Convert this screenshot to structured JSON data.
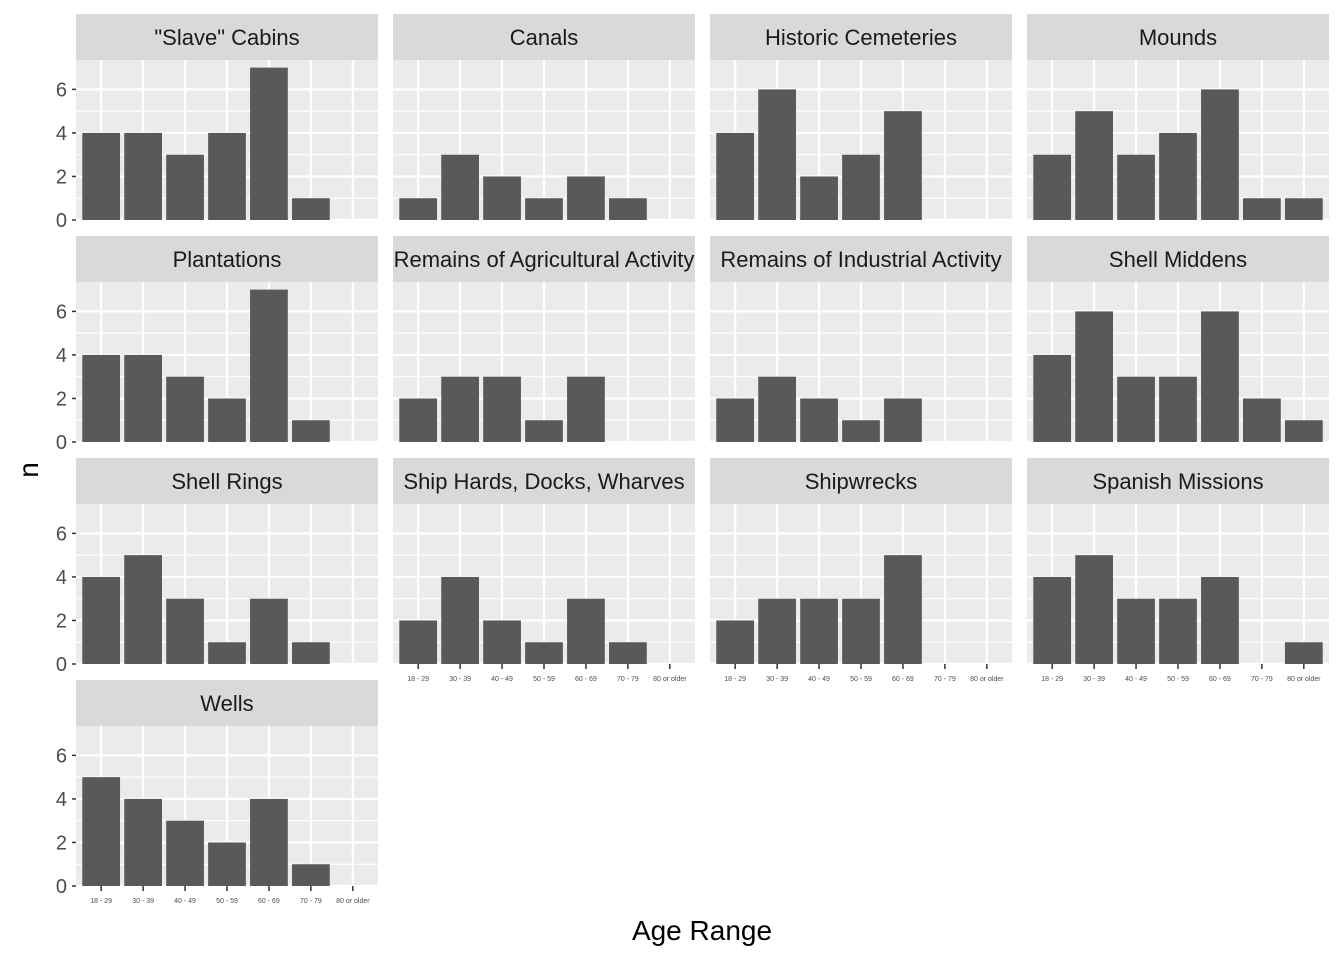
{
  "chart_data": {
    "type": "bar",
    "facet_columns": 4,
    "xlabel": "Age Range",
    "ylabel": "n",
    "ylim": [
      0,
      7.35
    ],
    "y_ticks": [
      0,
      2,
      4,
      6
    ],
    "categories": [
      "18 - 29",
      "30 - 39",
      "40 - 49",
      "50 - 59",
      "60 - 69",
      "70 - 79",
      "80 or older"
    ],
    "colors": {
      "bar": "#595959",
      "panel_background": "#ebebeb",
      "strip_background": "#d9d9d9",
      "grid": "#ffffff"
    },
    "panels": [
      {
        "title": "\"Slave\" Cabins",
        "values": [
          4,
          4,
          3,
          4,
          7,
          1,
          0
        ]
      },
      {
        "title": "Canals",
        "values": [
          1,
          3,
          2,
          1,
          2,
          1,
          0
        ]
      },
      {
        "title": "Historic Cemeteries",
        "values": [
          4,
          6,
          2,
          3,
          5,
          0,
          0
        ]
      },
      {
        "title": "Mounds",
        "values": [
          3,
          5,
          3,
          4,
          6,
          1,
          1
        ]
      },
      {
        "title": "Plantations",
        "values": [
          4,
          4,
          3,
          2,
          7,
          1,
          0
        ]
      },
      {
        "title": "Remains of Agricultural Activity",
        "values": [
          2,
          3,
          3,
          1,
          3,
          0,
          0
        ]
      },
      {
        "title": "Remains of Industrial Activity",
        "values": [
          2,
          3,
          2,
          1,
          2,
          0,
          0
        ]
      },
      {
        "title": "Shell Middens",
        "values": [
          4,
          6,
          3,
          3,
          6,
          2,
          1
        ]
      },
      {
        "title": "Shell Rings",
        "values": [
          4,
          5,
          3,
          1,
          3,
          1,
          0
        ]
      },
      {
        "title": "Ship Hards, Docks, Wharves",
        "values": [
          2,
          4,
          2,
          1,
          3,
          1,
          0
        ]
      },
      {
        "title": "Shipwrecks",
        "values": [
          2,
          3,
          3,
          3,
          5,
          0,
          0
        ]
      },
      {
        "title": "Spanish Missions",
        "values": [
          4,
          5,
          3,
          3,
          4,
          0,
          1
        ]
      },
      {
        "title": "Wells",
        "values": [
          5,
          4,
          3,
          2,
          4,
          1,
          0
        ]
      }
    ]
  }
}
